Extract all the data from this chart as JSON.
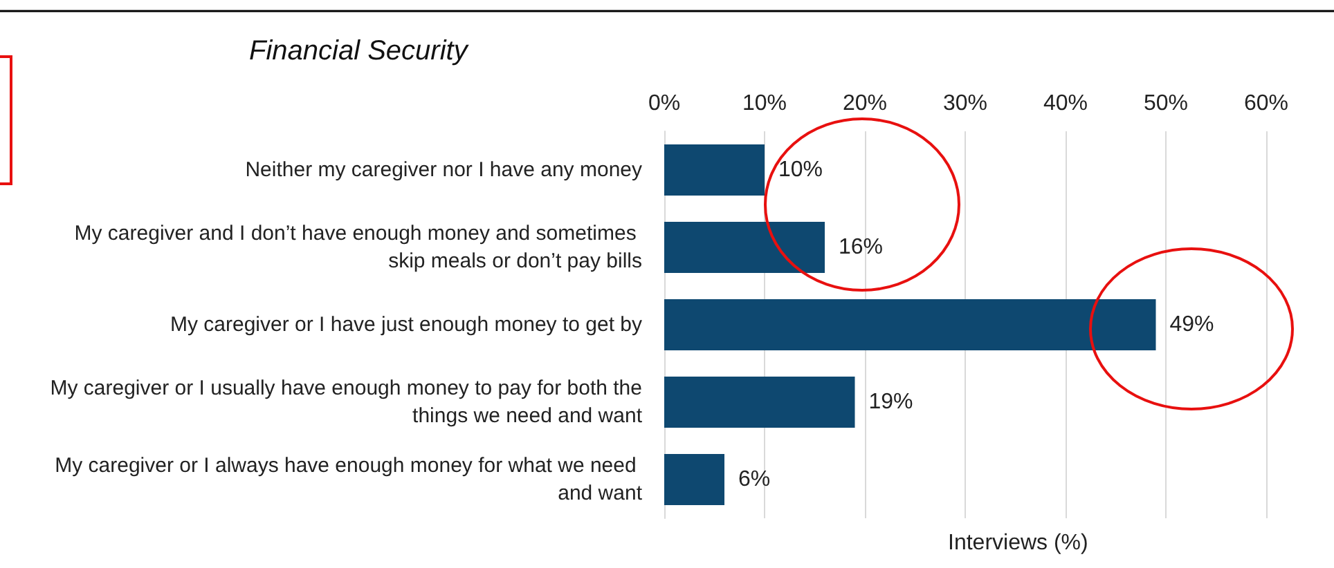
{
  "chart_data": {
    "type": "bar",
    "orientation": "horizontal",
    "title": "Financial Security",
    "xlabel": "Interviews (%)",
    "categories": [
      "Neither my caregiver nor I have any money",
      "My caregiver and I don’t have enough money and sometimes skip meals or don’t pay bills",
      "My caregiver or I have just enough money to get by",
      "My caregiver or I usually have enough money to pay for both the things we need and want",
      "My caregiver or I always have enough money for what we need and want"
    ],
    "values": [
      10,
      16,
      49,
      19,
      6
    ],
    "value_labels": [
      "10%",
      "16%",
      "49%",
      "19%",
      "6%"
    ],
    "color": "#0e4870",
    "xlim": [
      0,
      60
    ],
    "xticks": [
      {
        "value": 0,
        "label": "0%"
      },
      {
        "value": 10,
        "label": "10%"
      },
      {
        "value": 20,
        "label": "20%"
      },
      {
        "value": 30,
        "label": "30%"
      },
      {
        "value": 40,
        "label": "40%"
      },
      {
        "value": 50,
        "label": "50%"
      },
      {
        "value": 60,
        "label": "60%"
      }
    ],
    "grid": "x"
  }
}
